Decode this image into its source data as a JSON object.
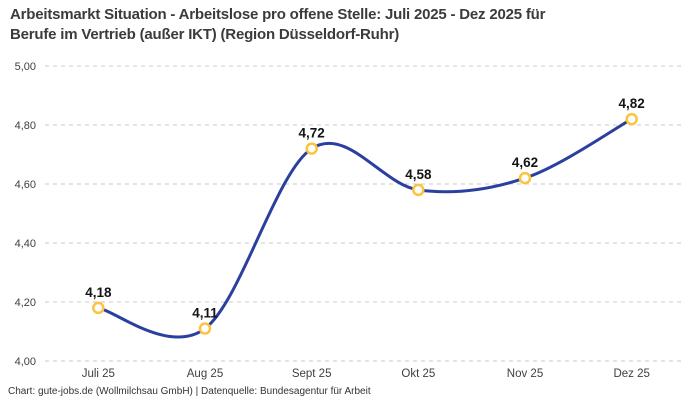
{
  "chart_data": {
    "type": "line",
    "title": "Arbeitsmarkt Situation - Arbeitslose pro offene Stelle: Juli 2025 - Dez 2025 für Berufe im Vertrieb (außer IKT) (Region Düsseldorf-Ruhr)",
    "title_lines": [
      "Arbeitsmarkt Situation - Arbeitslose pro offene Stelle: Juli 2025 - Dez 2025 für",
      "Berufe im Vertrieb (außer IKT) (Region Düsseldorf-Ruhr)"
    ],
    "categories": [
      "Juli 25",
      "Aug 25",
      "Sept 25",
      "Okt 25",
      "Nov 25",
      "Dez 25"
    ],
    "values": [
      4.18,
      4.11,
      4.72,
      4.58,
      4.62,
      4.82
    ],
    "value_labels": [
      "4,18",
      "4,11",
      "4,72",
      "4,58",
      "4,62",
      "4,82"
    ],
    "y_ticks": [
      {
        "label": "5,00",
        "value": 5.0
      },
      {
        "label": "4,80",
        "value": 4.8
      },
      {
        "label": "4,60",
        "value": 4.6
      },
      {
        "label": "4,40",
        "value": 4.4
      },
      {
        "label": "4,20",
        "value": 4.2
      },
      {
        "label": "4,00",
        "value": 4.0
      }
    ],
    "ylim": [
      4.0,
      5.0
    ],
    "xlabel": "",
    "ylabel": "",
    "grid": "horizontal-dashed",
    "legend": "none",
    "colors": {
      "line": "#2b3f9e",
      "marker_stroke": "#fdc33e",
      "marker_fill": "#ffffff",
      "grid": "#c9c9c9",
      "tick_text": "#404040",
      "data_label": "#141414",
      "title_text": "#3b3b3b",
      "footer_text": "#333333"
    },
    "footer": "Chart: gute-jobs.de (Wollmilchsau GmbH) | Datenquelle: Bundesagentur für Arbeit"
  }
}
